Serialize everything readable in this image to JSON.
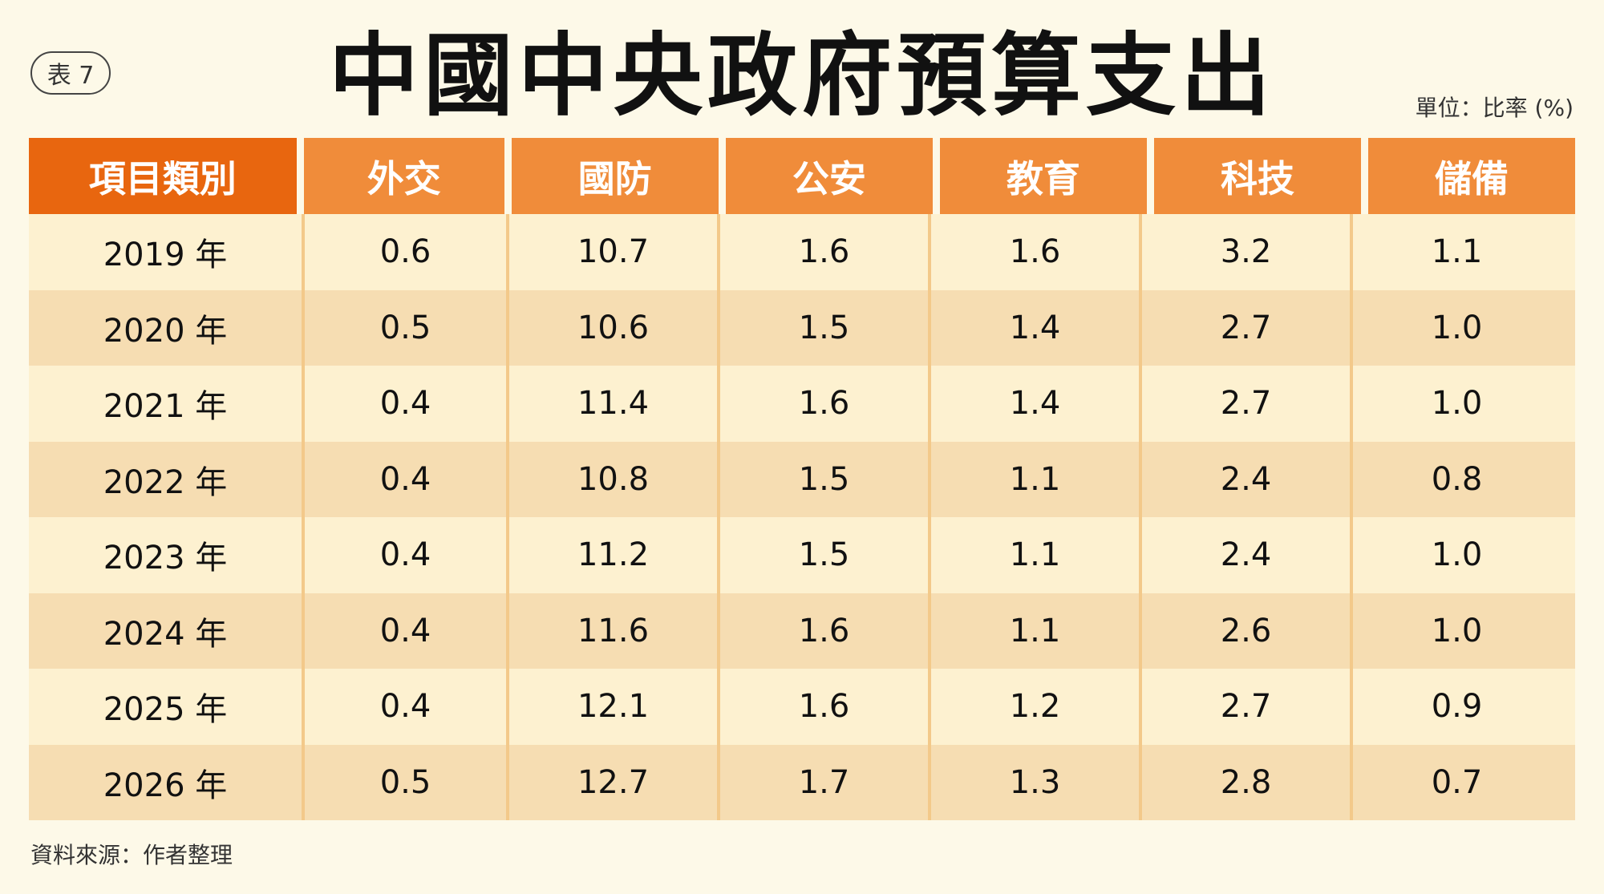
{
  "badge": "表 7",
  "title": "中國中央政府預算支出",
  "unit": "單位：比率 (%)",
  "source": "資料來源：作者整理",
  "colors": {
    "background": "#fdf9e8",
    "header_first": "#e8660f",
    "header": "#f08c3a",
    "row_light": "#fdf1d0",
    "row_dark": "#f6ddb2"
  },
  "chart_data": {
    "type": "table",
    "title": "中國中央政府預算支出",
    "columns": [
      "項目類別",
      "外交",
      "國防",
      "公安",
      "教育",
      "科技",
      "儲備"
    ],
    "rows": [
      [
        "2019 年",
        "0.6",
        "10.7",
        "1.6",
        "1.6",
        "3.2",
        "1.1"
      ],
      [
        "2020 年",
        "0.5",
        "10.6",
        "1.5",
        "1.4",
        "2.7",
        "1.0"
      ],
      [
        "2021 年",
        "0.4",
        "11.4",
        "1.6",
        "1.4",
        "2.7",
        "1.0"
      ],
      [
        "2022 年",
        "0.4",
        "10.8",
        "1.5",
        "1.1",
        "2.4",
        "0.8"
      ],
      [
        "2023 年",
        "0.4",
        "11.2",
        "1.5",
        "1.1",
        "2.4",
        "1.0"
      ],
      [
        "2024 年",
        "0.4",
        "11.6",
        "1.6",
        "1.1",
        "2.6",
        "1.0"
      ],
      [
        "2025 年",
        "0.4",
        "12.1",
        "1.6",
        "1.2",
        "2.7",
        "0.9"
      ],
      [
        "2026 年",
        "0.5",
        "12.7",
        "1.7",
        "1.3",
        "2.8",
        "0.7"
      ]
    ]
  }
}
